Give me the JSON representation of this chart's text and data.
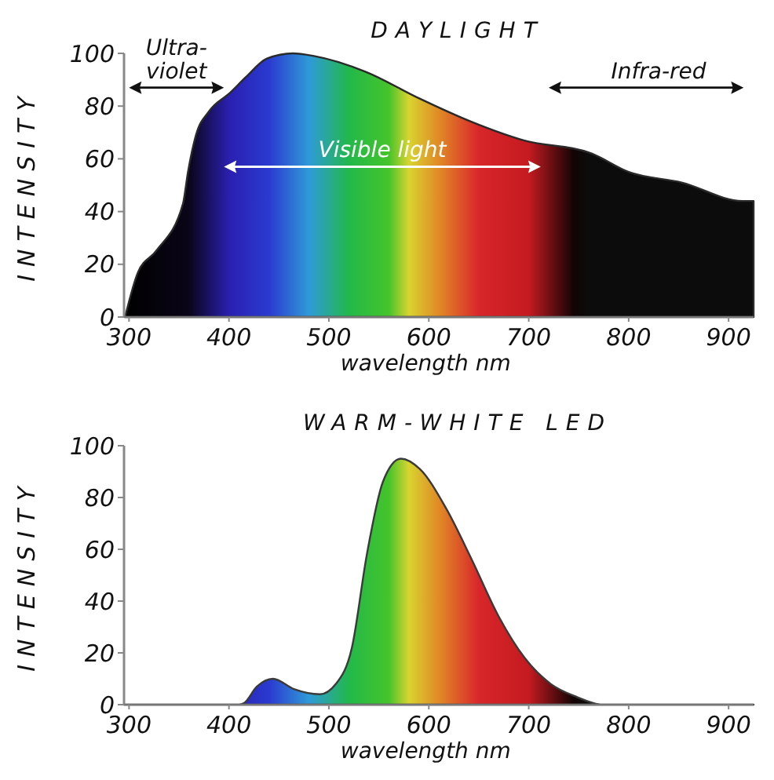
{
  "chart_data": [
    {
      "type": "area",
      "title": "DAYLIGHT",
      "xlabel": "wavelength nm",
      "ylabel": "INTENSITY",
      "x": [
        296,
        309,
        327,
        354,
        359,
        367,
        380,
        401,
        417,
        438,
        464,
        485,
        537,
        590,
        643,
        695,
        763,
        800,
        853,
        914,
        925
      ],
      "series": [
        {
          "color": "#2a2a2a",
          "values": [
            0,
            17,
            25,
            43,
            55,
            69,
            78,
            85,
            91,
            98,
            100,
            99,
            93,
            83,
            74,
            67,
            62,
            55,
            51,
            44,
            44
          ]
        }
      ],
      "xlim": [
        295,
        925
      ],
      "ylim": [
        0,
        100
      ],
      "xticks": [
        300,
        400,
        500,
        600,
        700,
        800,
        900
      ],
      "yticks": [
        0,
        20,
        40,
        60,
        80,
        100
      ],
      "grid": false,
      "annotations": [
        "Ultra-violet",
        "Visible light",
        "Infra-red"
      ]
    },
    {
      "type": "area",
      "title": "WARM-WHITE LED",
      "xlabel": "wavelength nm",
      "ylabel": "INTENSITY",
      "x": [
        295,
        410,
        415,
        428,
        444,
        465,
        491,
        507,
        523,
        538,
        554,
        572,
        591,
        617,
        643,
        670,
        696,
        722,
        748,
        774,
        925
      ],
      "series": [
        {
          "color": "#3a3a3a",
          "values": [
            0,
            0,
            0.6,
            7,
            10,
            6,
            4,
            8,
            22,
            58,
            86,
            95,
            91,
            76,
            56,
            34,
            18,
            8,
            3,
            0,
            0
          ]
        }
      ],
      "xlim": [
        295,
        925
      ],
      "ylim": [
        0,
        100
      ],
      "xticks": [
        300,
        400,
        500,
        600,
        700,
        800,
        900
      ],
      "yticks": [
        0,
        20,
        40,
        60,
        80,
        100
      ],
      "grid": false
    }
  ]
}
